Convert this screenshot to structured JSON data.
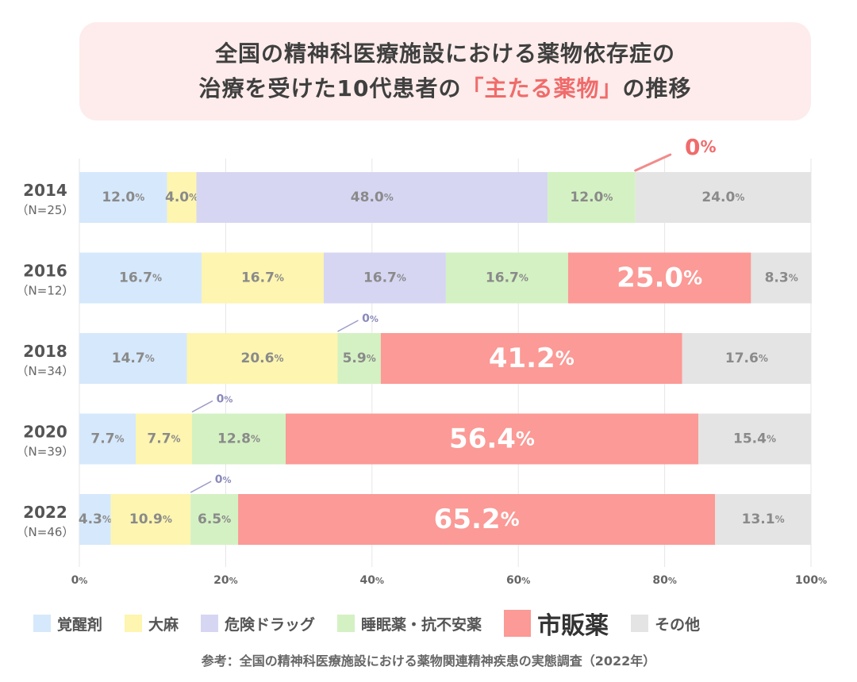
{
  "title": {
    "line1": "全国の精神科医療施設における薬物依存症の",
    "line2_before": "治療を受けた10代患者の",
    "line2_highlight": "「主たる薬物」",
    "line2_after": "の推移"
  },
  "colors": {
    "覚醒剤": "#d6e8fb",
    "大麻": "#fdf5b0",
    "危険ドラッグ": "#d6d6f3",
    "睡眠薬・抗不安薬": "#d4f1c3",
    "市販薬": "#fb9a96",
    "その他": "#e4e4e4",
    "highlight": "#f06b6b",
    "zero_leader_small": "#9c9cc8"
  },
  "chart_data": {
    "type": "bar",
    "orientation": "horizontal",
    "stacked": true,
    "title": "全国の精神科医療施設における薬物依存症の治療を受けた10代患者の「主たる薬物」の推移",
    "categories": [
      "2014",
      "2016",
      "2018",
      "2020",
      "2022"
    ],
    "category_notes": [
      "（N=25）",
      "（N=12）",
      "（N=34）",
      "（N=39）",
      "（N=46）"
    ],
    "xlim": [
      0,
      100
    ],
    "xticks": [
      "0%",
      "20%",
      "40%",
      "60%",
      "80%",
      "100%"
    ],
    "grid": true,
    "series": [
      {
        "name": "覚醒剤",
        "values": [
          12.0,
          16.7,
          14.7,
          7.7,
          4.3
        ],
        "labels": [
          "12.0%",
          "16.7%",
          "14.7%",
          "7.7%",
          "4.3%"
        ]
      },
      {
        "name": "大麻",
        "values": [
          4.0,
          16.7,
          20.6,
          7.7,
          10.9
        ],
        "labels": [
          "4.0%",
          "16.7%",
          "20.6%",
          "7.7%",
          "10.9%"
        ]
      },
      {
        "name": "危険ドラッグ",
        "values": [
          48.0,
          16.7,
          0,
          0,
          0
        ],
        "labels": [
          "48.0%",
          "16.7%",
          "0%",
          "0%",
          "0%"
        ]
      },
      {
        "name": "睡眠薬・抗不安薬",
        "values": [
          12.0,
          16.7,
          5.9,
          12.8,
          6.5
        ],
        "labels": [
          "12.0%",
          "16.7%",
          "5.9%",
          "12.8%",
          "6.5%"
        ]
      },
      {
        "name": "市販薬",
        "values": [
          0,
          25.0,
          41.2,
          56.4,
          65.2
        ],
        "labels": [
          "0%",
          "25.0%",
          "41.2%",
          "56.4%",
          "65.2%"
        ]
      },
      {
        "name": "その他",
        "values": [
          24.0,
          8.3,
          17.6,
          15.4,
          13.1
        ],
        "labels": [
          "24.0%",
          "8.3%",
          "17.6%",
          "15.4%",
          "13.1%"
        ]
      }
    ],
    "legend": [
      "覚醒剤",
      "大麻",
      "危険ドラッグ",
      "睡眠薬・抗不安薬",
      "市販薬",
      "その他"
    ],
    "legend_position": "bottom"
  },
  "source": "参考：全国の精神科医療施設における薬物関連精神疾患の実態調査（2022年）"
}
